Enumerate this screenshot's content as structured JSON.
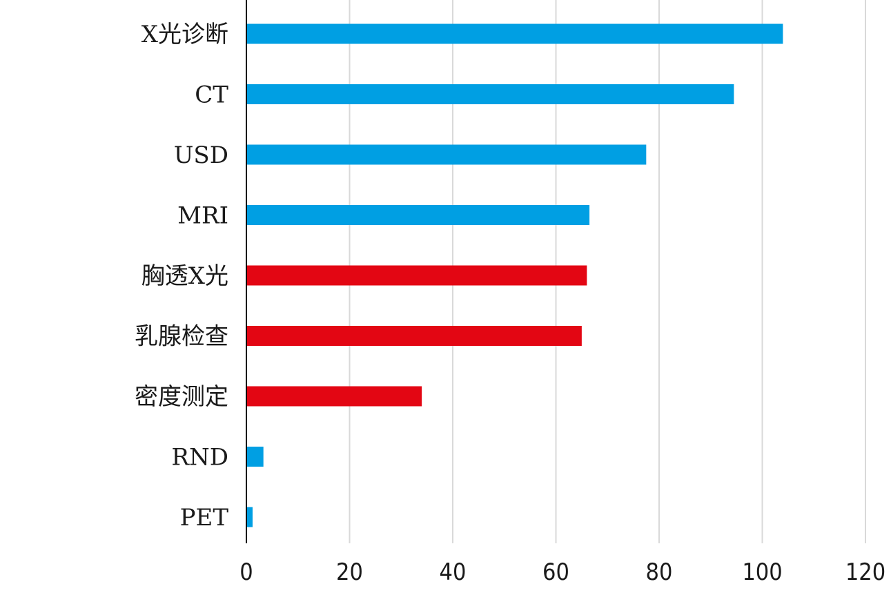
{
  "chart_data": {
    "type": "bar",
    "orientation": "horizontal",
    "title": "",
    "xlabel": "",
    "ylabel": "",
    "categories": [
      "X光诊断",
      "CT",
      "USD",
      "MRI",
      "胸透X光",
      "乳腺检查",
      "密度测定",
      "RND",
      "PET"
    ],
    "values": [
      104,
      94.5,
      77.5,
      66.5,
      66,
      65,
      34,
      3.3,
      1.2
    ],
    "bar_colors": [
      "#009fe3",
      "#009fe3",
      "#009fe3",
      "#009fe3",
      "#e30613",
      "#e30613",
      "#e30613",
      "#009fe3",
      "#009fe3"
    ],
    "xlim": [
      0,
      120
    ],
    "xticks": [
      "0",
      "20",
      "40",
      "60",
      "80",
      "100",
      "120"
    ],
    "grid": true,
    "legend": "none"
  }
}
